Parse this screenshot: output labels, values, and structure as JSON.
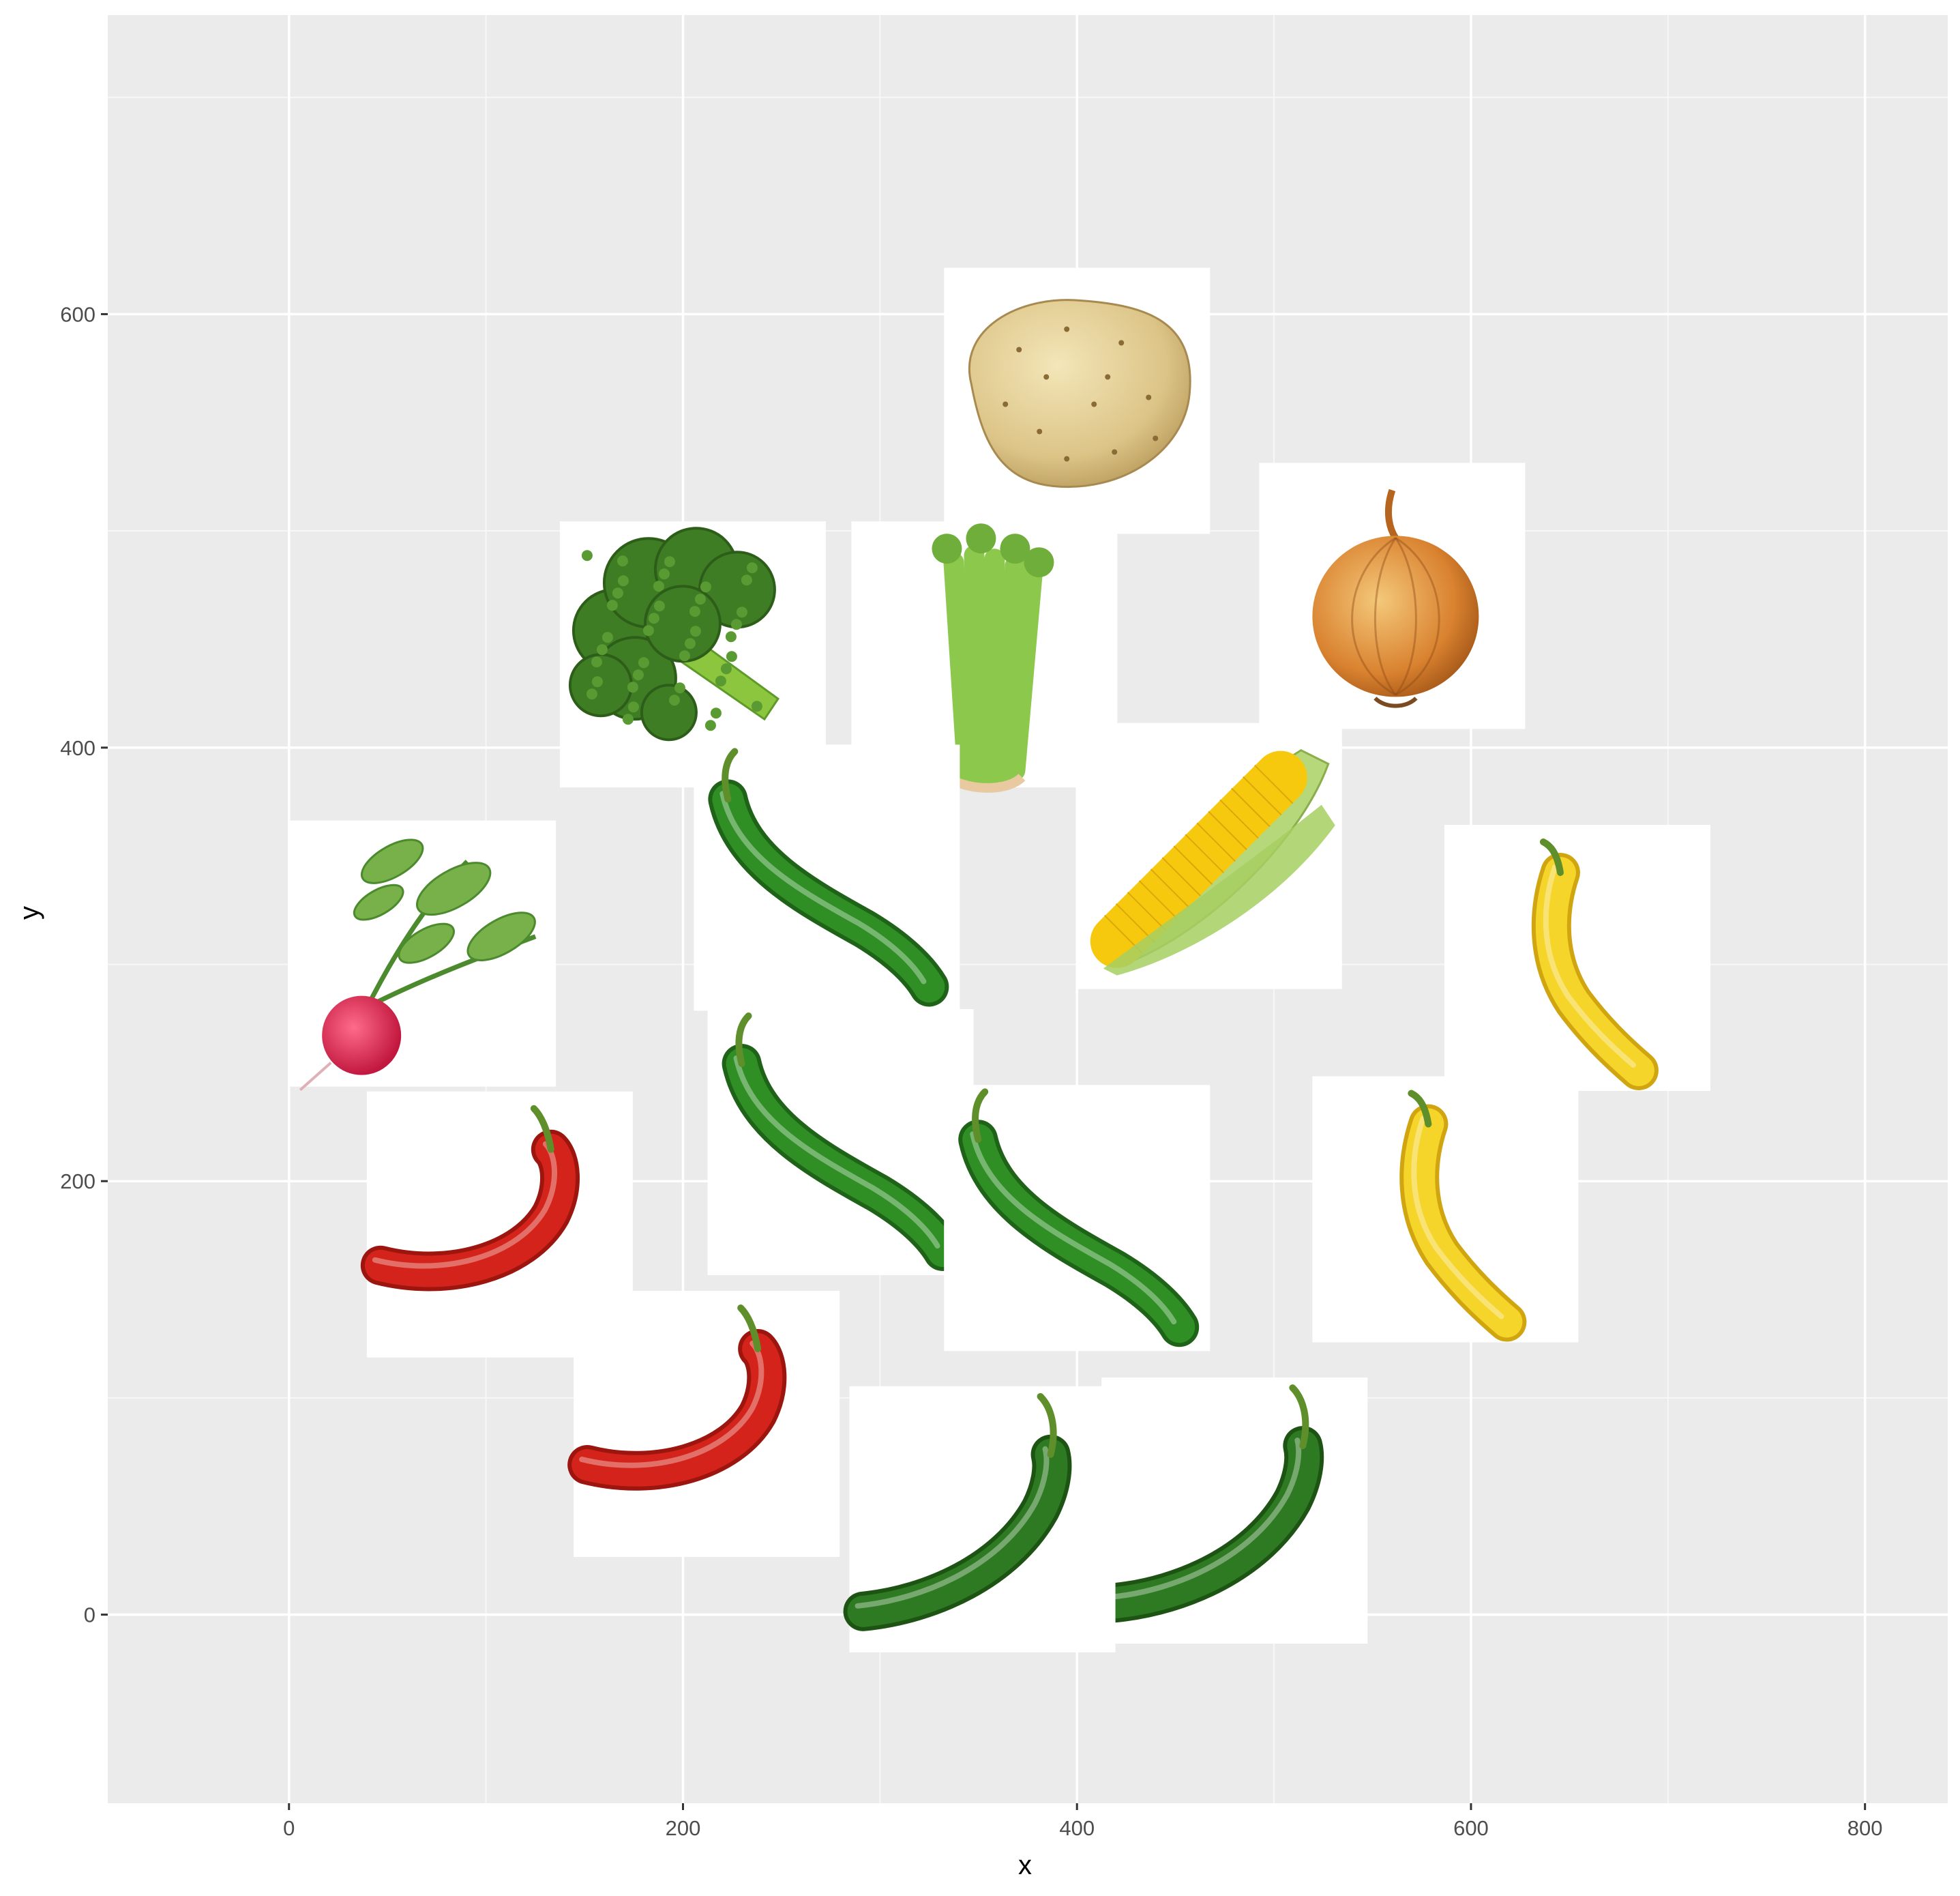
{
  "chart_data": {
    "type": "scatter",
    "xlabel": "x",
    "ylabel": "y",
    "xlim": [
      -92,
      842
    ],
    "ylim": [
      -87,
      738
    ],
    "x_ticks": [
      0,
      200,
      400,
      600,
      800
    ],
    "y_ticks": [
      0,
      200,
      400,
      600
    ],
    "x_tick_labels": [
      "0",
      "200",
      "400",
      "600",
      "800"
    ],
    "y_tick_labels": [
      "0",
      "200",
      "400",
      "600"
    ],
    "grid": true,
    "legend": "none",
    "marker": "vegetable photo",
    "points": [
      {
        "x": 400,
        "y": 560,
        "icon": "potato"
      },
      {
        "x": 560,
        "y": 470,
        "icon": "onion"
      },
      {
        "x": 205,
        "y": 443,
        "icon": "broccoli"
      },
      {
        "x": 353,
        "y": 443,
        "icon": "celery"
      },
      {
        "x": 467,
        "y": 350,
        "icon": "corn"
      },
      {
        "x": 273,
        "y": 340,
        "icon": "green-pepper"
      },
      {
        "x": 68,
        "y": 305,
        "icon": "radish"
      },
      {
        "x": 654,
        "y": 303,
        "icon": "yellow-pepper"
      },
      {
        "x": 280,
        "y": 218,
        "icon": "green-pepper"
      },
      {
        "x": 107,
        "y": 180,
        "icon": "red-pepper"
      },
      {
        "x": 587,
        "y": 187,
        "icon": "yellow-pepper"
      },
      {
        "x": 400,
        "y": 183,
        "icon": "green-pepper"
      },
      {
        "x": 212,
        "y": 88,
        "icon": "red-pepper"
      },
      {
        "x": 480,
        "y": 48,
        "icon": "jalapeno"
      },
      {
        "x": 352,
        "y": 44,
        "icon": "jalapeno"
      }
    ]
  },
  "colors": {
    "panel": "#ebebeb",
    "grid_major": "#ffffff",
    "grid_minor": "#f7f7f7",
    "tick_label": "#4d4d4d",
    "axis_title": "#000000"
  }
}
